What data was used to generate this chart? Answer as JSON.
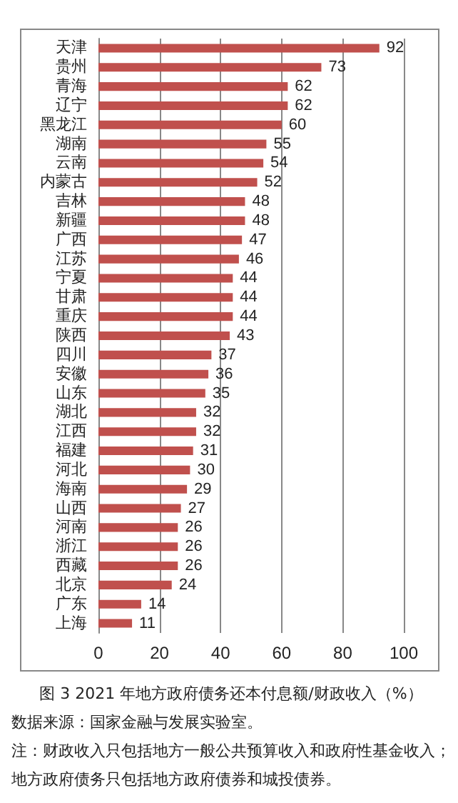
{
  "chart_data": {
    "type": "bar",
    "orientation": "horizontal",
    "title": "图 3 2021 年地方政府债务还本付息额/财政收入（%）",
    "categories": [
      "天津",
      "贵州",
      "青海",
      "辽宁",
      "黑龙江",
      "湖南",
      "云南",
      "内蒙古",
      "吉林",
      "新疆",
      "广西",
      "江苏",
      "宁夏",
      "甘肃",
      "重庆",
      "陕西",
      "四川",
      "安徽",
      "山东",
      "湖北",
      "江西",
      "福建",
      "河北",
      "海南",
      "山西",
      "河南",
      "浙江",
      "西藏",
      "北京",
      "广东",
      "上海"
    ],
    "values": [
      92,
      73,
      62,
      62,
      60,
      55,
      54,
      52,
      48,
      48,
      47,
      46,
      44,
      44,
      44,
      43,
      37,
      36,
      35,
      32,
      32,
      31,
      30,
      29,
      27,
      26,
      26,
      26,
      24,
      14,
      11
    ],
    "color": "#c0504d",
    "xlim": [
      0,
      100
    ],
    "xticks": [
      0,
      20,
      40,
      60,
      80,
      100
    ],
    "grid": "x",
    "data_labels": true,
    "annotations": [
      "数据来源：国家金融与发展实验室。",
      "注：财政收入只包括地方一般公共预算收入和政府性基金收入；地方政府债务只包括地方政府债券和城投债券。"
    ]
  }
}
